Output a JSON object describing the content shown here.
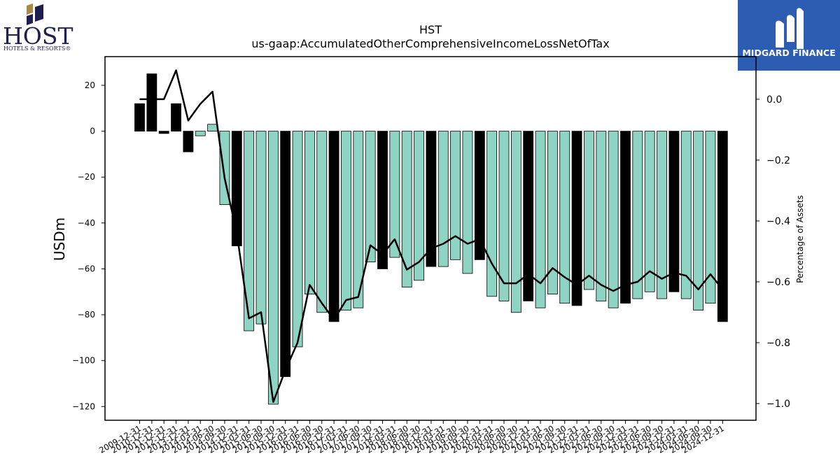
{
  "logos": {
    "left_logo": {
      "name": "HOST",
      "sub": "HOTELS & RESORTS®"
    },
    "right_logo": {
      "name": "MIDGARD FINANCE"
    }
  },
  "chart_data": {
    "type": "bar",
    "title": "HST",
    "subtitle": "us-gaap:AccumulatedOtherComprehensiveIncomeLossNetOfTax",
    "ylabel": "USDm",
    "y2label": "Percentage of Assets",
    "ylim": [
      -126,
      32.5
    ],
    "y2lim": [
      -1.055,
      0.14
    ],
    "yticks": [
      20,
      0,
      -20,
      -40,
      -60,
      -80,
      -100,
      -120
    ],
    "y2ticks": [
      0.0,
      -0.2,
      -0.4,
      -0.6,
      -0.8,
      -1.0
    ],
    "colors": {
      "annual": "#000000",
      "quarterly": "#8fd3c3",
      "line": "#000000"
    },
    "grid": false,
    "legend": "none",
    "categories": [
      "2009-12-31",
      "2010-12-31",
      "2011-12-31",
      "2012-12-31",
      "2013-12-31",
      "2014-03-31",
      "2014-06-30",
      "2014-09-30",
      "2014-12-31",
      "2015-03-31",
      "2015-06-30",
      "2015-09-30",
      "2015-12-31",
      "2016-03-31",
      "2016-06-30",
      "2016-09-30",
      "2016-12-31",
      "2017-03-31",
      "2017-06-30",
      "2017-09-30",
      "2017-12-31",
      "2018-03-31",
      "2018-06-30",
      "2018-09-30",
      "2018-12-31",
      "2019-03-31",
      "2019-06-30",
      "2019-09-30",
      "2019-12-31",
      "2020-03-31",
      "2020-06-30",
      "2020-09-30",
      "2020-12-31",
      "2021-03-31",
      "2021-06-30",
      "2021-09-30",
      "2021-12-31",
      "2022-03-31",
      "2022-06-30",
      "2022-09-30",
      "2022-12-31",
      "2023-03-31",
      "2023-06-30",
      "2023-09-30",
      "2023-12-31",
      "2024-03-31",
      "2024-06-30",
      "2024-09-30",
      "2024-12-31"
    ],
    "xtick_labels": [
      "2009-12-31",
      "2010-12-31",
      "2011-12-31",
      "2012-12-31",
      "2013-12-31",
      "2014-03-31",
      "2014-06-30",
      "2014-09-30",
      "2014-12-31",
      "2015-03-31",
      "2015-06-30",
      "2015-09-30",
      "2015-12-31",
      "2016-03-31",
      "2016-06-30",
      "2016-09-30",
      "2016-12-31",
      "2017-03-31",
      "2017-06-30",
      "2017-09-30",
      "2017-12-31",
      "2018-03-31",
      "2018-06-30",
      "2018-09-30",
      "2018-12-31",
      "2019-03-31",
      "2019-06-30",
      "2019-09-30",
      "2019-12-31",
      "2020-03-31",
      "2020-06-30",
      "2020-09-30",
      "2020-12-31",
      "2021-03-31",
      "2021-06-30",
      "2021-09-30",
      "2021-12-31",
      "2022-03-31",
      "2022-06-30",
      "2022-09-30",
      "2022-12-31",
      "2023-03-31",
      "2023-06-30",
      "2023-09-30",
      "2023-12-31",
      "2024-03-31",
      "2024-06-30",
      "2024-09-30",
      "2024-12-31"
    ],
    "series": [
      {
        "kind": "bar",
        "values": [
          12,
          25,
          -1,
          12,
          -9,
          -2,
          3,
          -32,
          -50,
          -87,
          -84,
          -119,
          -107,
          -94,
          -71,
          -79,
          -83,
          -78,
          -77,
          -57,
          -60,
          -55,
          -68,
          -65,
          -59,
          -59,
          -56,
          -62,
          -56,
          -72,
          -74,
          -79,
          -74,
          -77,
          -71,
          -75,
          -76,
          -69,
          -74,
          -77,
          -75,
          -73,
          -70,
          -73,
          -70,
          -73,
          -78,
          -75,
          -83
        ],
        "annual": [
          true,
          true,
          true,
          true,
          true,
          false,
          false,
          false,
          true,
          false,
          false,
          false,
          true,
          false,
          false,
          false,
          true,
          false,
          false,
          false,
          true,
          false,
          false,
          false,
          true,
          false,
          false,
          false,
          true,
          false,
          false,
          false,
          true,
          false,
          false,
          false,
          true,
          false,
          false,
          false,
          true,
          false,
          false,
          false,
          true,
          false,
          false,
          false,
          true
        ]
      },
      {
        "kind": "line",
        "axis": "right",
        "values": [
          0.0,
          0.0,
          0.0,
          0.095,
          -0.07,
          -0.015,
          0.025,
          -0.26,
          -0.44,
          -0.72,
          -0.7,
          -0.995,
          -0.89,
          -0.8,
          -0.61,
          -0.67,
          -0.725,
          -0.66,
          -0.65,
          -0.48,
          -0.51,
          -0.46,
          -0.56,
          -0.535,
          -0.49,
          -0.475,
          -0.45,
          -0.475,
          -0.46,
          -0.54,
          -0.605,
          -0.605,
          -0.575,
          -0.605,
          -0.555,
          -0.585,
          -0.61,
          -0.58,
          -0.61,
          -0.63,
          -0.61,
          -0.6,
          -0.565,
          -0.59,
          -0.57,
          -0.58,
          -0.625,
          -0.575,
          -0.625
        ]
      }
    ]
  }
}
